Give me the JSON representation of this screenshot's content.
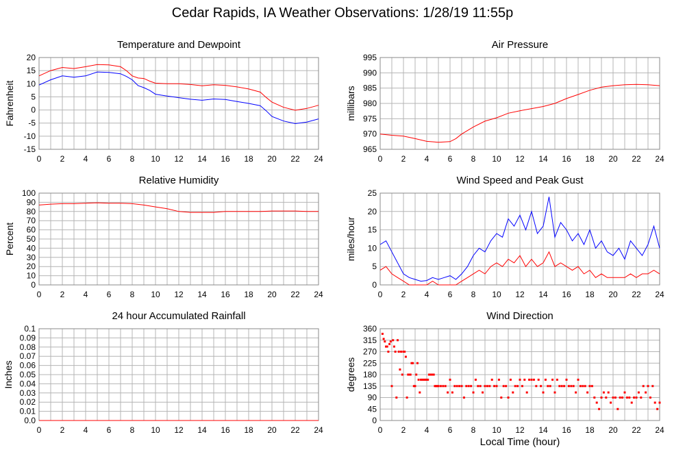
{
  "page_title": "Cedar Rapids, IA Weather Observations: 1/28/19 11:55p",
  "xlabel_bottom": "Local Time (hour)",
  "colors": {
    "red": "#ff0000",
    "blue": "#0000ff",
    "grid": "#b4b4b4",
    "frame": "#888888"
  },
  "chart_data": [
    {
      "id": "temp",
      "type": "line",
      "title": "Temperature and Dewpoint",
      "xlabel": "",
      "ylabel": "Fahrenheit",
      "xlim": [
        0,
        24
      ],
      "ylim": [
        -15,
        20
      ],
      "xticks": [
        0,
        2,
        4,
        6,
        8,
        10,
        12,
        14,
        16,
        18,
        20,
        22,
        24
      ],
      "yticks": [
        -15,
        -10,
        -5,
        0,
        5,
        10,
        15,
        20
      ],
      "grid": true,
      "series": [
        {
          "color": "#ff0000",
          "x": [
            0,
            1,
            2,
            3,
            4,
            5,
            6,
            7,
            7.5,
            8,
            8.5,
            9,
            9.5,
            10,
            11,
            12,
            13,
            14,
            15,
            16,
            17,
            18,
            19,
            19.5,
            20,
            21,
            22,
            23,
            24
          ],
          "y": [
            13,
            15,
            16.2,
            15.8,
            16.5,
            17.3,
            17.2,
            16.5,
            15,
            13,
            12.2,
            12,
            11,
            10.2,
            10,
            10,
            9.7,
            9.2,
            9.6,
            9.4,
            8.8,
            8,
            6.8,
            4.8,
            3,
            1,
            -0.1,
            0.6,
            1.8
          ]
        },
        {
          "color": "#0000ff",
          "x": [
            0,
            1,
            2,
            3,
            4,
            5,
            6,
            7,
            7.5,
            8,
            8.5,
            9,
            9.5,
            10,
            11,
            12,
            13,
            14,
            15,
            16,
            17,
            18,
            19,
            19.5,
            20,
            21,
            22,
            23,
            24
          ],
          "y": [
            9.5,
            11.5,
            13,
            12.5,
            13,
            14.5,
            14.3,
            13.8,
            12.8,
            11.5,
            9.3,
            8.5,
            7.5,
            6,
            5.3,
            4.7,
            4.1,
            3.7,
            4.2,
            4,
            3.2,
            2.5,
            1.6,
            -0.3,
            -2.5,
            -4.2,
            -5.2,
            -4.6,
            -3.4
          ]
        }
      ]
    },
    {
      "id": "pressure",
      "type": "line",
      "title": "Air Pressure",
      "xlabel": "",
      "ylabel": "millibars",
      "xlim": [
        0,
        24
      ],
      "ylim": [
        965,
        995
      ],
      "xticks": [
        0,
        2,
        4,
        6,
        8,
        10,
        12,
        14,
        16,
        18,
        20,
        22,
        24
      ],
      "yticks": [
        965,
        970,
        975,
        980,
        985,
        990,
        995
      ],
      "grid": true,
      "series": [
        {
          "color": "#ff0000",
          "x": [
            0,
            1,
            2,
            3,
            4,
            5,
            6,
            6.5,
            7,
            8,
            9,
            10,
            11,
            12,
            13,
            14,
            15,
            16,
            17,
            18,
            19,
            20,
            21,
            22,
            23,
            24
          ],
          "y": [
            970,
            969.6,
            969.3,
            968.5,
            967.6,
            967.3,
            967.5,
            968.5,
            970,
            972.3,
            974.2,
            975.3,
            976.8,
            977.6,
            978.3,
            979,
            980,
            981.6,
            982.9,
            984.3,
            985.3,
            985.8,
            986.1,
            986.2,
            986.1,
            985.8
          ]
        }
      ]
    },
    {
      "id": "humidity",
      "type": "line",
      "title": "Relative Humidity",
      "xlabel": "",
      "ylabel": "Percent",
      "xlim": [
        0,
        24
      ],
      "ylim": [
        0,
        100
      ],
      "xticks": [
        0,
        2,
        4,
        6,
        8,
        10,
        12,
        14,
        16,
        18,
        20,
        22,
        24
      ],
      "yticks": [
        0,
        10,
        20,
        30,
        40,
        50,
        60,
        70,
        80,
        90,
        100
      ],
      "grid": true,
      "series": [
        {
          "color": "#ff0000",
          "x": [
            0,
            1,
            2,
            3,
            4,
            5,
            6,
            7,
            8,
            9,
            10,
            11,
            12,
            13,
            14,
            15,
            16,
            17,
            18,
            19,
            20,
            21,
            22,
            23,
            24
          ],
          "y": [
            87,
            88,
            88.5,
            88.5,
            89,
            89.5,
            89,
            89,
            88.5,
            87,
            85,
            83,
            80,
            79,
            79,
            79,
            80,
            80,
            80,
            80,
            80.5,
            80.5,
            80.5,
            80,
            80
          ]
        }
      ]
    },
    {
      "id": "wind",
      "type": "line",
      "title": "Wind Speed and Peak Gust",
      "xlabel": "",
      "ylabel": "miles/hour",
      "xlim": [
        0,
        24
      ],
      "ylim": [
        0,
        25
      ],
      "xticks": [
        0,
        2,
        4,
        6,
        8,
        10,
        12,
        14,
        16,
        18,
        20,
        22,
        24
      ],
      "yticks": [
        0,
        5,
        10,
        15,
        20,
        25
      ],
      "grid": true,
      "series": [
        {
          "color": "#0000ff",
          "x": [
            0,
            0.5,
            1,
            1.5,
            2,
            2.5,
            3,
            3.5,
            4,
            4.5,
            5,
            5.5,
            6,
            6.5,
            7,
            7.5,
            8,
            8.5,
            9,
            9.5,
            10,
            10.5,
            11,
            11.5,
            12,
            12.5,
            13,
            13.5,
            14,
            14.5,
            15,
            15.5,
            16,
            16.5,
            17,
            17.5,
            18,
            18.5,
            19,
            19.5,
            20,
            20.5,
            21,
            21.5,
            22,
            22.5,
            23,
            23.5,
            24
          ],
          "y": [
            11,
            12,
            9,
            6,
            3,
            2,
            1.5,
            1,
            1.2,
            2,
            1.5,
            2,
            2.5,
            1.5,
            3,
            5,
            8,
            10,
            9,
            12,
            14,
            13,
            18,
            16,
            19,
            15,
            20,
            14,
            16,
            24,
            13,
            17,
            15,
            12,
            14,
            11,
            15,
            10,
            12,
            9,
            8,
            10,
            7,
            12,
            10,
            8,
            11,
            16,
            10
          ]
        },
        {
          "color": "#ff0000",
          "x": [
            0,
            0.5,
            1,
            1.5,
            2,
            2.5,
            3,
            3.5,
            4,
            4.5,
            5,
            5.5,
            6,
            6.5,
            7,
            7.5,
            8,
            8.5,
            9,
            9.5,
            10,
            10.5,
            11,
            11.5,
            12,
            12.5,
            13,
            13.5,
            14,
            14.5,
            15,
            15.5,
            16,
            16.5,
            17,
            17.5,
            18,
            18.5,
            19,
            19.5,
            20,
            20.5,
            21,
            21.5,
            22,
            22.5,
            23,
            23.5,
            24
          ],
          "y": [
            4,
            5,
            3,
            2,
            1,
            0,
            0,
            0,
            0,
            1,
            0,
            0,
            0,
            0,
            1,
            2,
            3,
            4,
            3,
            5,
            6,
            5,
            7,
            6,
            8,
            5,
            7,
            5,
            6,
            9,
            5,
            6,
            5,
            4,
            5,
            3,
            4,
            2,
            3,
            2,
            2,
            2,
            2,
            3,
            2,
            3,
            3,
            4,
            3
          ]
        }
      ]
    },
    {
      "id": "rain",
      "type": "line",
      "title": "24 hour Accumulated Rainfall",
      "xlabel": "",
      "ylabel": "Inches",
      "xlim": [
        0,
        24
      ],
      "ylim": [
        0,
        0.1
      ],
      "xticks": [
        0,
        2,
        4,
        6,
        8,
        10,
        12,
        14,
        16,
        18,
        20,
        22,
        24
      ],
      "yticks": [
        0.0,
        0.01,
        0.02,
        0.03,
        0.04,
        0.05,
        0.06,
        0.07,
        0.08,
        0.09,
        0.1
      ],
      "ytick_labels": [
        "0.0",
        "0.01",
        "0.02",
        "0.03",
        "0.04",
        "0.05",
        "0.06",
        "0.07",
        "0.08",
        "0.09",
        "0.1"
      ],
      "grid": true,
      "series": [
        {
          "color": "#ff0000",
          "x": [
            0,
            24
          ],
          "y": [
            0,
            0
          ]
        }
      ]
    },
    {
      "id": "direction",
      "type": "scatter",
      "title": "Wind Direction",
      "xlabel": "Local Time (hour)",
      "ylabel": "degrees",
      "xlim": [
        0,
        24
      ],
      "ylim": [
        0,
        360
      ],
      "xticks": [
        0,
        2,
        4,
        6,
        8,
        10,
        12,
        14,
        16,
        18,
        20,
        22,
        24
      ],
      "yticks": [
        0,
        45,
        90,
        135,
        180,
        225,
        270,
        315,
        360
      ],
      "grid": true,
      "series": [
        {
          "color": "#ff0000",
          "x": [
            0.2,
            0.3,
            0.4,
            0.5,
            0.6,
            0.7,
            0.8,
            0.9,
            1.0,
            1.1,
            1.2,
            1.3,
            1.4,
            1.5,
            1.6,
            1.7,
            1.8,
            1.9,
            2.0,
            2.1,
            2.2,
            2.3,
            2.4,
            2.5,
            2.6,
            2.7,
            2.8,
            2.9,
            3.0,
            3.1,
            3.2,
            3.3,
            3.4,
            3.5,
            3.6,
            3.7,
            3.8,
            3.9,
            4.0,
            4.1,
            4.2,
            4.3,
            4.4,
            4.5,
            4.6,
            4.7,
            4.8,
            4.9,
            5.0,
            5.2,
            5.4,
            5.6,
            5.8,
            6.0,
            6.2,
            6.4,
            6.6,
            6.8,
            7.0,
            7.2,
            7.4,
            7.6,
            7.8,
            8.0,
            8.2,
            8.4,
            8.6,
            8.8,
            9.0,
            9.2,
            9.4,
            9.6,
            9.8,
            10.0,
            10.2,
            10.4,
            10.6,
            10.8,
            11.0,
            11.2,
            11.4,
            11.6,
            11.8,
            12.0,
            12.2,
            12.4,
            12.6,
            12.8,
            13.0,
            13.2,
            13.4,
            13.6,
            13.8,
            14.0,
            14.2,
            14.4,
            14.6,
            14.8,
            15.0,
            15.2,
            15.4,
            15.6,
            15.8,
            16.0,
            16.2,
            16.4,
            16.6,
            16.8,
            17.0,
            17.2,
            17.4,
            17.6,
            17.8,
            18.0,
            18.2,
            18.4,
            18.6,
            18.8,
            19.0,
            19.2,
            19.4,
            19.6,
            19.8,
            20.0,
            20.2,
            20.4,
            20.6,
            20.8,
            21.0,
            21.2,
            21.4,
            21.6,
            21.8,
            22.0,
            22.2,
            22.4,
            22.6,
            22.8,
            23.0,
            23.2,
            23.4,
            23.6,
            23.8,
            24.0
          ],
          "y": [
            340,
            320,
            310,
            290,
            290,
            270,
            300,
            310,
            135,
            315,
            290,
            270,
            90,
            315,
            270,
            200,
            270,
            180,
            270,
            270,
            250,
            90,
            180,
            180,
            180,
            225,
            225,
            135,
            135,
            180,
            225,
            160,
            110,
            160,
            160,
            160,
            160,
            160,
            160,
            160,
            180,
            180,
            180,
            180,
            180,
            135,
            135,
            135,
            135,
            135,
            135,
            135,
            110,
            160,
            110,
            135,
            135,
            135,
            135,
            90,
            135,
            135,
            135,
            110,
            160,
            135,
            135,
            110,
            135,
            135,
            135,
            160,
            135,
            135,
            160,
            90,
            135,
            135,
            90,
            160,
            110,
            135,
            135,
            160,
            135,
            160,
            110,
            160,
            160,
            160,
            135,
            160,
            135,
            110,
            160,
            135,
            135,
            160,
            110,
            160,
            135,
            135,
            135,
            160,
            135,
            135,
            135,
            110,
            160,
            135,
            135,
            135,
            110,
            135,
            135,
            90,
            70,
            45,
            90,
            110,
            90,
            110,
            70,
            90,
            90,
            45,
            90,
            90,
            110,
            90,
            90,
            70,
            90,
            90,
            110,
            90,
            135,
            110,
            135,
            90,
            135,
            70,
            45,
            70
          ]
        }
      ]
    }
  ]
}
